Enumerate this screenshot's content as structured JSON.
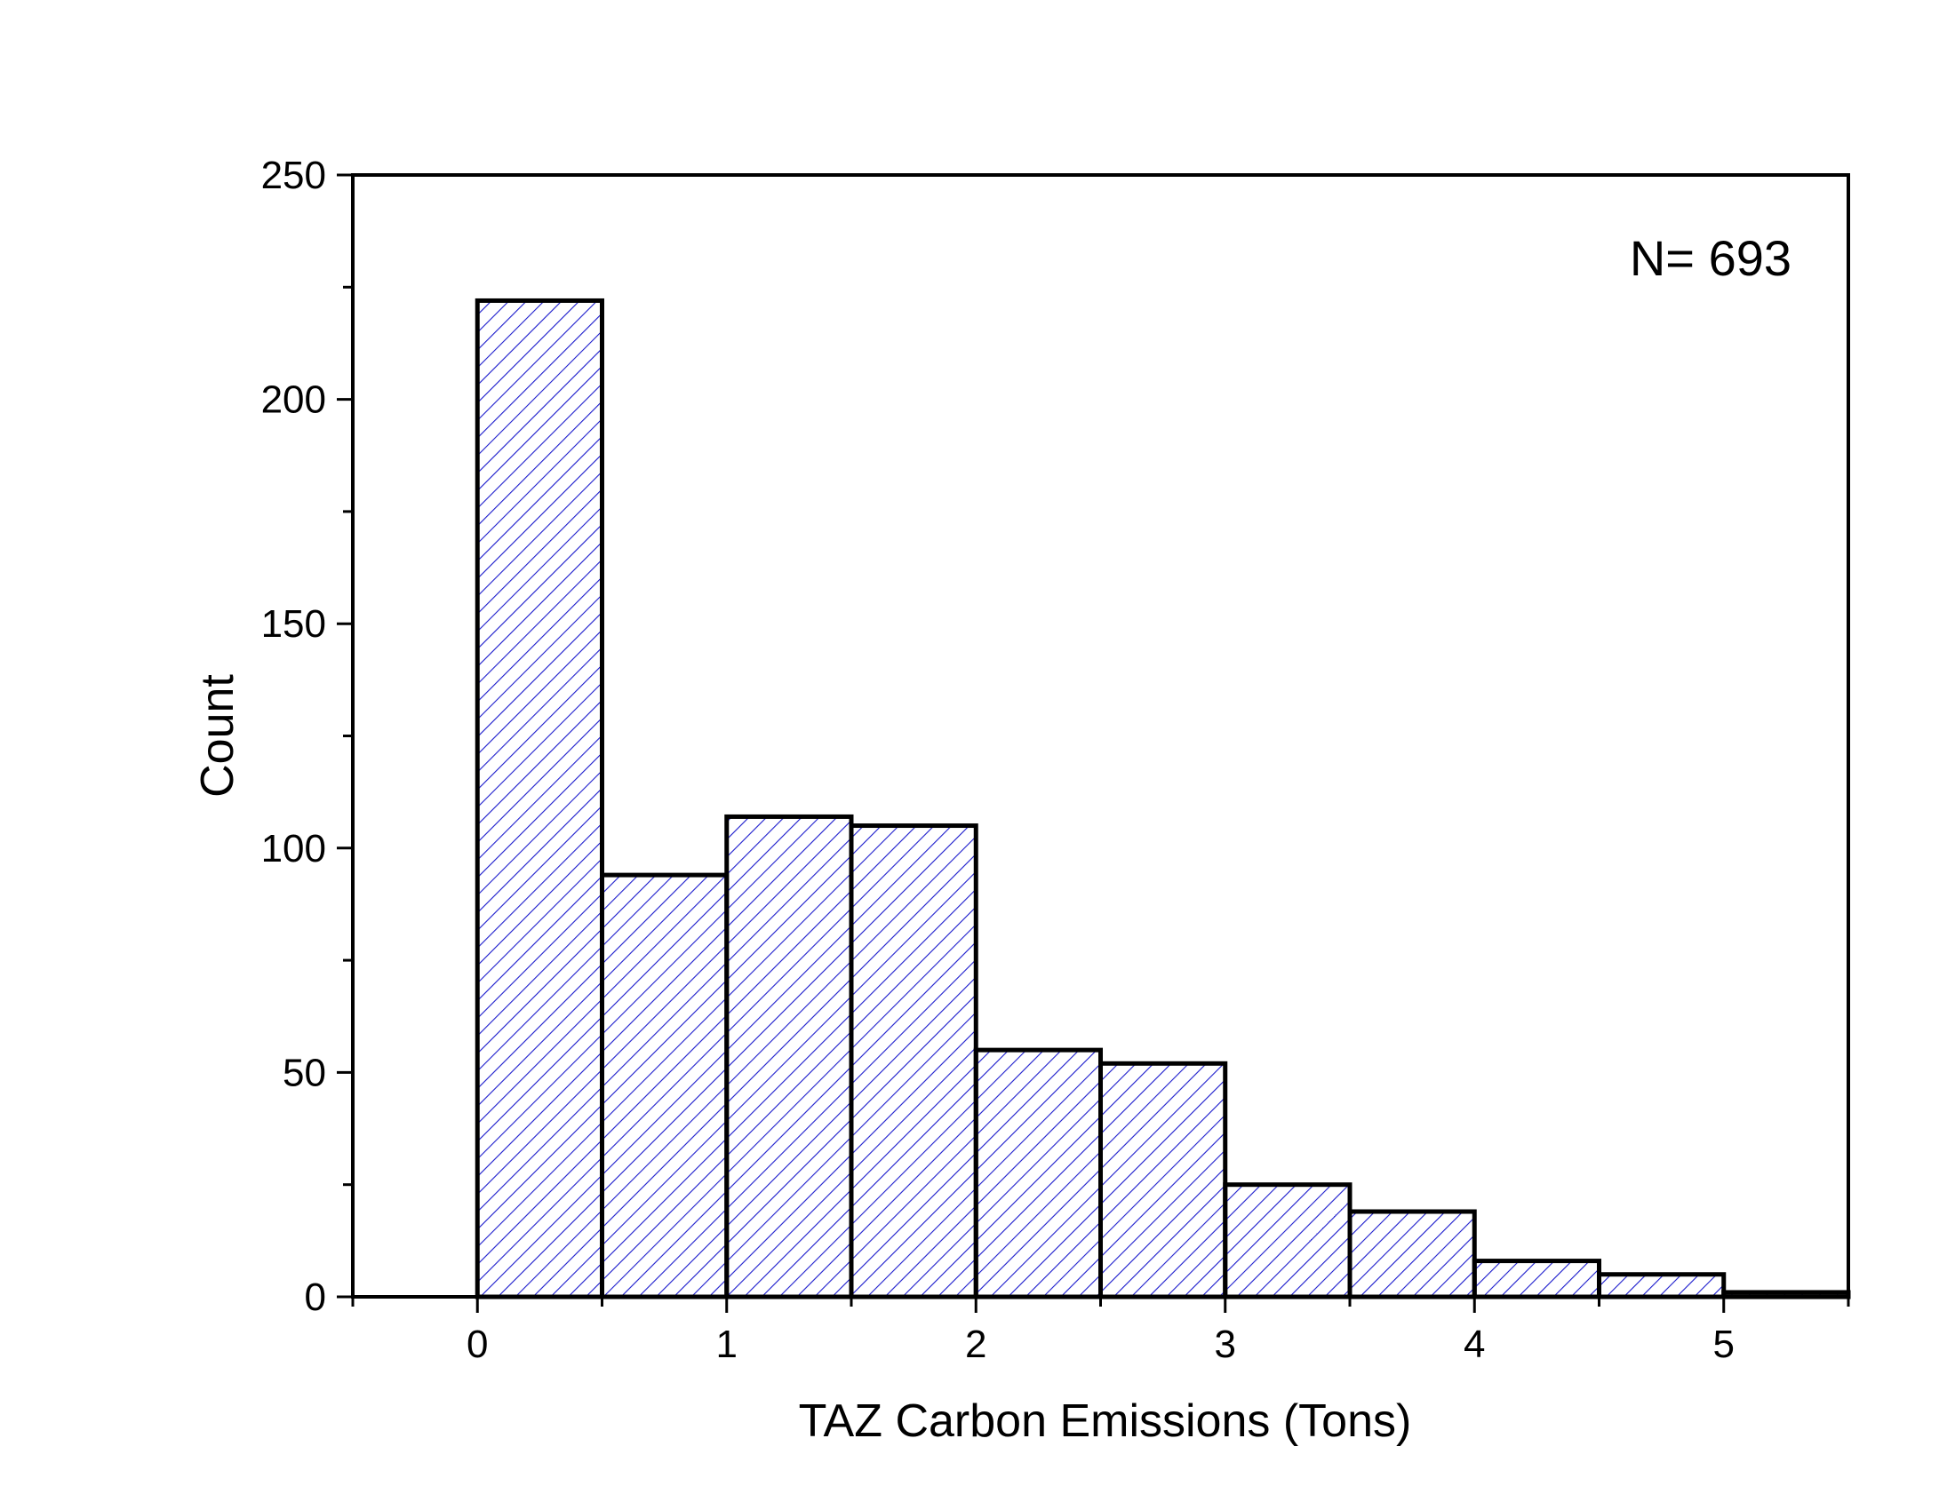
{
  "chart_data": {
    "type": "bar",
    "title": "",
    "xlabel": "TAZ Carbon Emissions (Tons)",
    "ylabel": "Count",
    "annotation": "N= 693",
    "xlim": [
      -0.5,
      5.5
    ],
    "ylim": [
      0,
      250
    ],
    "xticks": [
      0,
      1,
      2,
      3,
      4,
      5
    ],
    "yticks": [
      0,
      50,
      100,
      150,
      200,
      250
    ],
    "bin_width": 0.5,
    "bins": [
      {
        "start": 0.0,
        "end": 0.5,
        "count": 222
      },
      {
        "start": 0.5,
        "end": 1.0,
        "count": 94
      },
      {
        "start": 1.0,
        "end": 1.5,
        "count": 107
      },
      {
        "start": 1.5,
        "end": 2.0,
        "count": 105
      },
      {
        "start": 2.0,
        "end": 2.5,
        "count": 55
      },
      {
        "start": 2.5,
        "end": 3.0,
        "count": 52
      },
      {
        "start": 3.0,
        "end": 3.5,
        "count": 25
      },
      {
        "start": 3.5,
        "end": 4.0,
        "count": 19
      },
      {
        "start": 4.0,
        "end": 4.5,
        "count": 8
      },
      {
        "start": 4.5,
        "end": 5.0,
        "count": 5
      },
      {
        "start": 5.0,
        "end": 5.5,
        "count": 1
      }
    ],
    "bar_fill_pattern": "diagonal-hatch",
    "hatch_color": "#1a1acc",
    "bar_edge_color": "#000000",
    "grid": false,
    "legend": "none"
  }
}
